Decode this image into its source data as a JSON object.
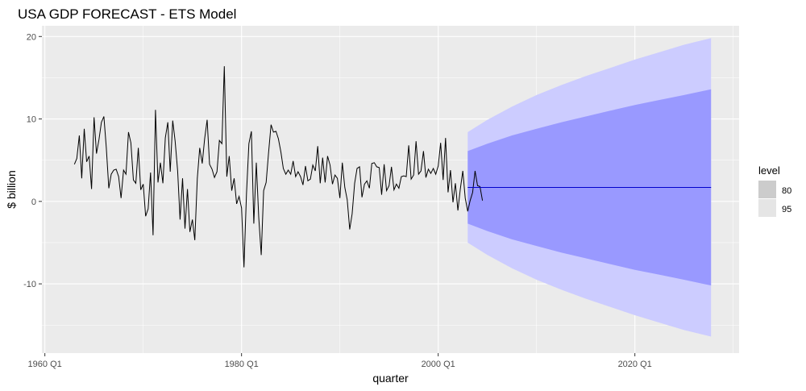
{
  "chart_data": {
    "type": "line",
    "title": "USA GDP FORECAST - ETS Model",
    "xlabel": "quarter",
    "ylabel": "$ billion",
    "x_tick_labels": [
      "1960 Q1",
      "1980 Q1",
      "2000 Q1",
      "2020 Q1"
    ],
    "x_tick_values": [
      1960,
      1980,
      2000,
      2020
    ],
    "y_tick_labels": [
      "-10",
      "0",
      "10",
      "20"
    ],
    "y_tick_values": [
      -10,
      0,
      10,
      20
    ],
    "xlim": [
      1959.7,
      2030.6
    ],
    "ylim": [
      -18.4,
      21.3
    ],
    "grid": true,
    "legend": {
      "title": "level",
      "position": "right",
      "entries": [
        "80",
        "95"
      ]
    },
    "series": [
      {
        "name": "actual",
        "x_start": 1963.0,
        "step": 0.25,
        "values": [
          4.5,
          5.2,
          8.0,
          2.8,
          8.8,
          4.8,
          5.5,
          1.5,
          10.2,
          5.8,
          7.5,
          9.6,
          10.3,
          6.5,
          1.6,
          3.3,
          3.8,
          3.9,
          3.0,
          0.4,
          3.8,
          3.3,
          8.4,
          7.1,
          2.6,
          2.2,
          6.5,
          1.4,
          2.1,
          -1.8,
          -0.9,
          3.5,
          -4.1,
          11.1,
          2.3,
          4.7,
          2.2,
          7.7,
          9.6,
          3.6,
          9.8,
          7.3,
          3.7,
          -2.2,
          2.8,
          -3.3,
          1.5,
          -3.7,
          -2.2,
          -4.7,
          2.8,
          6.5,
          4.6,
          7.6,
          9.9,
          4.5,
          3.9,
          2.9,
          3.6,
          7.4,
          7.0,
          16.4,
          3.0,
          5.5,
          1.3,
          2.8,
          -0.3,
          0.6,
          -0.8,
          -8.0,
          0.9,
          7.0,
          8.5,
          -2.7,
          4.7,
          -1.9,
          -6.5,
          1.3,
          2.3,
          5.9,
          9.3,
          8.4,
          8.5,
          7.6,
          6.0,
          4.0,
          3.3,
          3.8,
          3.3,
          4.9,
          3.0,
          3.6,
          3.0,
          2.0,
          4.3,
          2.5,
          2.7,
          4.4,
          3.7,
          6.7,
          2.2,
          5.3,
          2.3,
          5.5,
          4.4,
          2.1,
          3.2,
          2.8,
          0.4,
          4.7,
          1.7,
          0.2,
          -3.4,
          -1.5,
          2.2,
          4.0,
          4.2,
          0.5,
          2.1,
          2.5,
          1.6,
          4.6,
          4.7,
          4.2,
          4.1,
          0.8,
          4.5,
          1.3,
          1.9,
          4.2,
          1.4,
          2.1,
          1.6,
          3.0,
          3.1,
          3.0,
          6.8,
          2.7,
          3.2,
          7.3,
          3.3,
          3.7,
          6.1,
          2.9,
          3.9,
          3.4,
          4.0,
          3.3,
          4.3,
          7.1,
          2.6,
          7.7,
          1.1,
          3.8,
          -0.1,
          2.2,
          -1.1,
          1.5,
          3.7,
          0.4,
          -1.2,
          0.1,
          1.1,
          3.7,
          1.9,
          1.8,
          0.1
        ]
      },
      {
        "name": "forecast",
        "x": [
          2003.0,
          2027.75
        ],
        "values": [
          1.7,
          1.7
        ]
      }
    ],
    "intervals": {
      "x": [
        2003.0,
        2005.0,
        2007.5,
        2010.0,
        2012.5,
        2015.0,
        2017.5,
        2020.0,
        2022.5,
        2025.0,
        2027.75
      ],
      "lower80": [
        -2.7,
        -3.6,
        -4.6,
        -5.4,
        -6.2,
        -6.9,
        -7.6,
        -8.3,
        -8.9,
        -9.5,
        -10.2
      ],
      "upper80": [
        6.1,
        7.0,
        8.0,
        8.8,
        9.6,
        10.3,
        11.0,
        11.7,
        12.3,
        12.9,
        13.6
      ],
      "lower95": [
        -5.0,
        -6.5,
        -8.1,
        -9.5,
        -10.7,
        -11.8,
        -12.8,
        -13.8,
        -14.7,
        -15.6,
        -16.4
      ],
      "upper95": [
        8.4,
        9.9,
        11.5,
        12.9,
        14.1,
        15.2,
        16.2,
        17.2,
        18.1,
        19.0,
        19.8
      ]
    },
    "colors": {
      "panel_bg": "#ebebeb",
      "grid": "#ffffff",
      "line": "#000000",
      "forecast_line": "#0000cc",
      "band80": "#9999ff",
      "band95": "#ccccff",
      "legend80": "#cccccc",
      "legend95": "#e5e5e5"
    }
  }
}
